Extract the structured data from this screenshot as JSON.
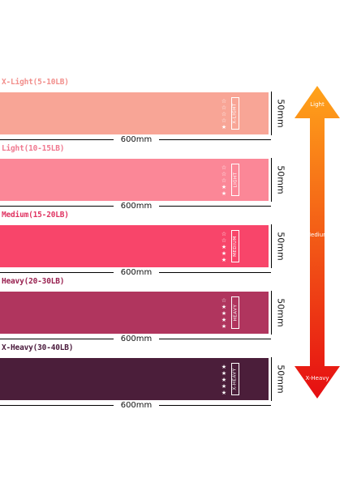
{
  "bands": [
    {
      "label": "X-Light(5-10LB)",
      "tag": "X-LIGHT",
      "stars_filled": 1,
      "stars_total": 5,
      "color": "#F8A596",
      "label_color": "#F28F8C",
      "width": "600mm",
      "height": "50mm"
    },
    {
      "label": "Light(10-15LB)",
      "tag": "LIGHT",
      "stars_filled": 2,
      "stars_total": 5,
      "color": "#FB8797",
      "label_color": "#F0788F",
      "width": "600mm",
      "height": "50mm"
    },
    {
      "label": "Medium(15-20LB)",
      "tag": "MEDIUM",
      "stars_filled": 3,
      "stars_total": 5,
      "color": "#F8456A",
      "label_color": "#E03462",
      "width": "600mm",
      "height": "50mm"
    },
    {
      "label": "Heavy(20-30LB)",
      "tag": "HEAVY",
      "stars_filled": 4,
      "stars_total": 5,
      "color": "#B0355E",
      "label_color": "#98204F",
      "width": "600mm",
      "height": "50mm"
    },
    {
      "label": "X-Heavy(30-40LB)",
      "tag": "X-HEAVY",
      "stars_filled": 5,
      "stars_total": 5,
      "color": "#4B1E3A",
      "label_color": "#4A1A3C",
      "width": "600mm",
      "height": "50mm"
    }
  ],
  "arrow": {
    "top_label": "Light",
    "middle_label": "Medium",
    "bottom_label": "X-Heavy",
    "gradient_top": "#FFA31A",
    "gradient_bottom": "#E60E12"
  }
}
